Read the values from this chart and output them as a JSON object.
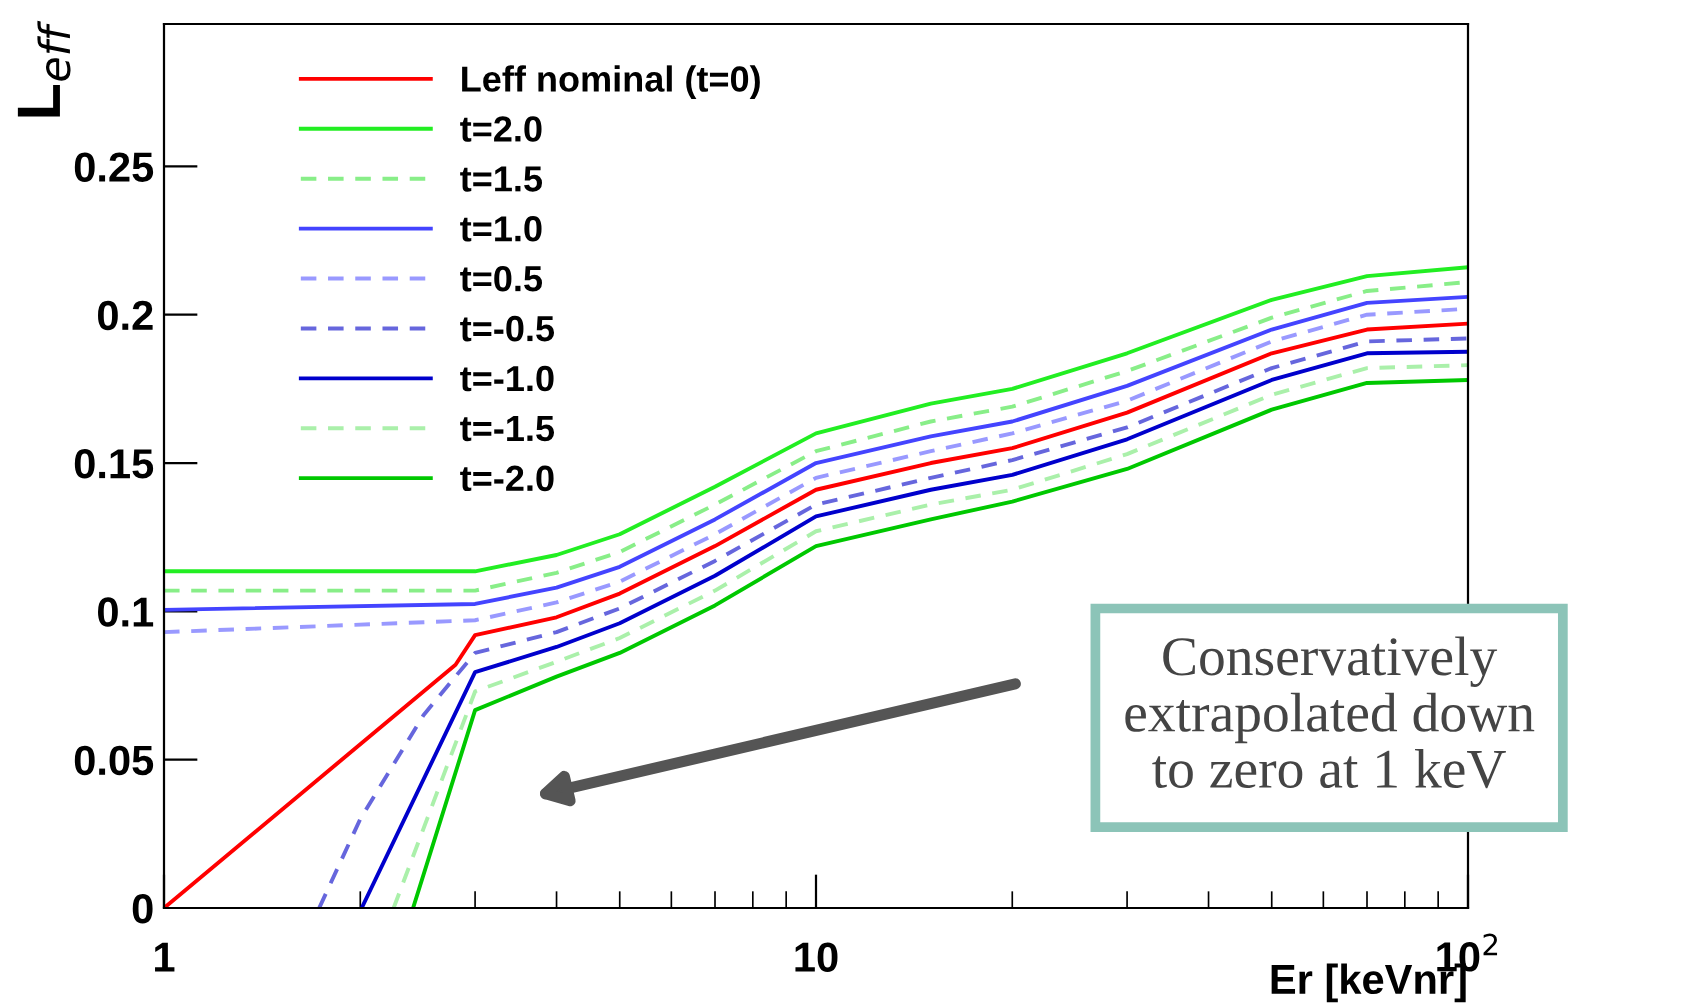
{
  "chart_data": {
    "type": "line",
    "ylabel": "L$_{eff}$",
    "xlabel": "Er [keVnr]",
    "log": "x",
    "xlim": [
      1,
      100
    ],
    "xticks": [
      1,
      10,
      {
        "value": 100,
        "label": "10$^{2}$"
      }
    ],
    "ylim": [
      0,
      0.298
    ],
    "yticks": [
      0,
      0.05,
      0.1,
      0.15,
      0.2,
      0.25
    ],
    "grid": false,
    "legend": "top left",
    "marker": "none",
    "annotations": [
      "Conservatively\nextrapolated down\nto zero at 1 keV"
    ],
    "series": [
      {
        "name": "Leff nominal (t=0)",
        "color": "#ff0000",
        "line_style": "solid",
        "x": [
          1,
          2.8,
          3,
          4,
          5,
          7,
          10,
          15,
          20,
          30,
          50,
          70,
          100
        ],
        "values": [
          0,
          0.082,
          0.092,
          0.098,
          0.106,
          0.122,
          0.141,
          0.15,
          0.155,
          0.167,
          0.187,
          0.195,
          0.197
        ]
      },
      {
        "name": "t=2.0",
        "color": "#22ee22",
        "line_style": "solid",
        "x": [
          1,
          3,
          4,
          5,
          7,
          10,
          15,
          20,
          30,
          50,
          70,
          100
        ],
        "values": [
          0.1135,
          0.1135,
          0.119,
          0.126,
          0.142,
          0.16,
          0.17,
          0.175,
          0.187,
          0.205,
          0.213,
          0.216
        ]
      },
      {
        "name": "t=1.5",
        "color": "#88ee88",
        "line_style": "dashed",
        "x": [
          1,
          3,
          4,
          5,
          7,
          10,
          15,
          20,
          30,
          50,
          70,
          100
        ],
        "values": [
          0.107,
          0.107,
          0.113,
          0.12,
          0.136,
          0.154,
          0.164,
          0.169,
          0.181,
          0.199,
          0.208,
          0.211
        ]
      },
      {
        "name": "t=1.0",
        "color": "#4444ff",
        "line_style": "solid",
        "x": [
          1,
          3,
          4,
          5,
          7,
          10,
          15,
          20,
          30,
          50,
          70,
          100
        ],
        "values": [
          0.1005,
          0.1025,
          0.108,
          0.115,
          0.131,
          0.15,
          0.159,
          0.164,
          0.176,
          0.195,
          0.204,
          0.206
        ]
      },
      {
        "name": "t=0.5",
        "color": "#9999ff",
        "line_style": "dashed",
        "x": [
          1,
          3,
          4,
          5,
          7,
          10,
          15,
          20,
          30,
          50,
          70,
          100
        ],
        "values": [
          0.093,
          0.097,
          0.103,
          0.11,
          0.126,
          0.145,
          0.154,
          0.16,
          0.171,
          0.191,
          0.2,
          0.202
        ]
      },
      {
        "name": "t=-0.5",
        "color": "#6666dd",
        "line_style": "dashed",
        "x": [
          1.73,
          2,
          2.5,
          3,
          4,
          5,
          7,
          10,
          15,
          20,
          30,
          50,
          70,
          100
        ],
        "values": [
          0,
          0.03,
          0.065,
          0.086,
          0.093,
          0.101,
          0.117,
          0.136,
          0.145,
          0.151,
          0.162,
          0.182,
          0.191,
          0.192
        ]
      },
      {
        "name": "t=-1.0",
        "color": "#0000cc",
        "line_style": "solid",
        "x": [
          2.01,
          3,
          4,
          5,
          7,
          10,
          15,
          20,
          30,
          50,
          70,
          100
        ],
        "values": [
          0,
          0.0795,
          0.088,
          0.096,
          0.112,
          0.132,
          0.141,
          0.146,
          0.158,
          0.178,
          0.187,
          0.1875
        ]
      },
      {
        "name": "t=-1.5",
        "color": "#aaf0aa",
        "line_style": "dashed",
        "x": [
          2.25,
          3,
          4,
          5,
          7,
          10,
          15,
          20,
          30,
          50,
          70,
          100
        ],
        "values": [
          0,
          0.073,
          0.083,
          0.091,
          0.107,
          0.127,
          0.136,
          0.141,
          0.153,
          0.173,
          0.182,
          0.183
        ]
      },
      {
        "name": "t=-2.0",
        "color": "#00c800",
        "line_style": "solid",
        "x": [
          2.41,
          3,
          4,
          5,
          7,
          10,
          15,
          20,
          30,
          50,
          70,
          100
        ],
        "values": [
          0,
          0.0667,
          0.078,
          0.086,
          0.102,
          0.122,
          0.131,
          0.137,
          0.148,
          0.168,
          0.177,
          0.178
        ]
      }
    ]
  }
}
